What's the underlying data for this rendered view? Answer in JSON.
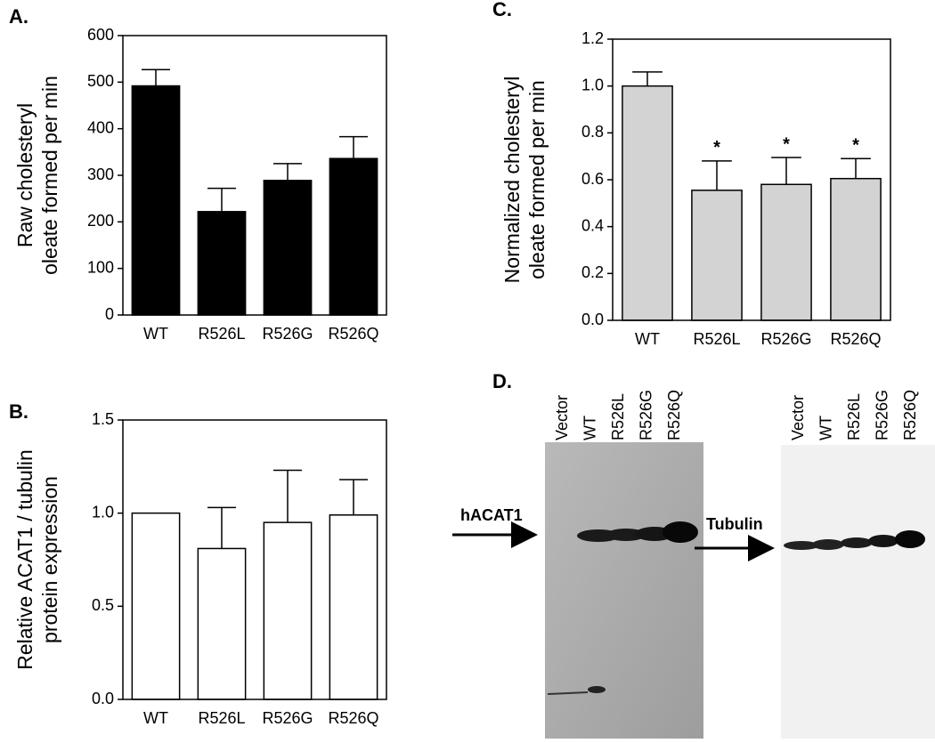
{
  "chart_data": [
    {
      "type": "bar",
      "panel_label": "A.",
      "ylabel": [
        "Raw cholesteryl",
        "oleate formed per min"
      ],
      "categories": [
        "WT",
        "R526L",
        "R526G",
        "R526Q"
      ],
      "values": [
        492,
        222,
        289,
        336
      ],
      "errors": [
        35,
        50,
        36,
        47
      ],
      "color": "#000000",
      "ylim": [
        0,
        600
      ],
      "yticks": [
        0,
        100,
        200,
        300,
        400,
        500,
        600
      ]
    },
    {
      "type": "bar",
      "panel_label": "B.",
      "ylabel": [
        "Relative ACAT1 / tubulin",
        "protein expression"
      ],
      "categories": [
        "WT",
        "R526L",
        "R526G",
        "R526Q"
      ],
      "values": [
        1.0,
        0.81,
        0.95,
        0.99
      ],
      "errors": [
        null,
        0.22,
        0.28,
        0.19
      ],
      "color": "#ffffff",
      "ylim": [
        0,
        1.5
      ],
      "yticks": [
        {
          "value": 0,
          "label": "0.0"
        },
        0.5,
        {
          "value": 1,
          "label": "1.0"
        },
        1.5
      ]
    },
    {
      "type": "bar",
      "panel_label": "C.",
      "ylabel": [
        "Normalized cholesteryl",
        "oleate formed per min"
      ],
      "categories": [
        "WT",
        "R526L",
        "R526G",
        "R526Q"
      ],
      "values": [
        1.0,
        0.555,
        0.58,
        0.605
      ],
      "errors": [
        0.06,
        0.125,
        0.115,
        0.085
      ],
      "annotations": [
        null,
        "*",
        "*",
        "*"
      ],
      "color": "#d3d3d3",
      "ylim": [
        0,
        1.2
      ],
      "yticks": [
        {
          "value": 0,
          "label": "0.0"
        },
        0.2,
        0.4,
        0.6,
        0.8,
        {
          "value": 1,
          "label": "1.0"
        },
        1.2
      ]
    }
  ],
  "blot": {
    "panel_label": "D.",
    "left": {
      "lanes": [
        "Vector",
        "WT",
        "R526L",
        "R526G",
        "R526Q"
      ],
      "marker": "hACAT1"
    },
    "right": {
      "lanes": [
        "Vector",
        "WT",
        "R526L",
        "R526G",
        "R526Q"
      ],
      "marker": "Tubulin"
    }
  }
}
